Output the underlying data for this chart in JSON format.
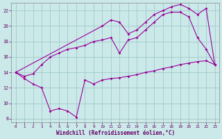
{
  "xlabel": "Windchill (Refroidissement éolien,°C)",
  "background_color": "#cbe9e9",
  "grid_color": "#a0c8c8",
  "line_color": "#990099",
  "xlim_min": -0.5,
  "xlim_max": 23.5,
  "ylim_min": 7.5,
  "ylim_max": 23.0,
  "yticks": [
    8,
    10,
    12,
    14,
    16,
    18,
    20,
    22
  ],
  "xticks": [
    0,
    1,
    2,
    3,
    4,
    5,
    6,
    7,
    8,
    9,
    10,
    11,
    12,
    13,
    14,
    15,
    16,
    17,
    18,
    19,
    20,
    21,
    22,
    23
  ],
  "series1_x": [
    0,
    1,
    2,
    3,
    4,
    5,
    6,
    7,
    8,
    9,
    10,
    11,
    12,
    13,
    14,
    15,
    16,
    17,
    18,
    19,
    20,
    21,
    22,
    23
  ],
  "series1_y": [
    14.0,
    13.2,
    12.5,
    12.0,
    9.0,
    9.3,
    9.0,
    8.2,
    13.0,
    12.5,
    13.0,
    13.2,
    13.3,
    13.5,
    13.7,
    14.0,
    14.2,
    14.5,
    14.7,
    15.0,
    15.2,
    15.4,
    15.5,
    15.0
  ],
  "series2_x": [
    0,
    1,
    2,
    3,
    4,
    5,
    6,
    7,
    8,
    9,
    10,
    11,
    12,
    13,
    14,
    15,
    16,
    17,
    18,
    19,
    20,
    21,
    22,
    23
  ],
  "series2_y": [
    14.0,
    13.5,
    13.8,
    15.0,
    16.0,
    16.5,
    17.0,
    17.2,
    17.5,
    18.0,
    18.2,
    18.5,
    16.5,
    18.2,
    18.5,
    19.5,
    20.5,
    21.5,
    21.8,
    21.8,
    21.2,
    18.5,
    17.0,
    15.0
  ],
  "series3_x": [
    0,
    10,
    11,
    12,
    13,
    14,
    15,
    16,
    17,
    18,
    19,
    20,
    21,
    22,
    23
  ],
  "series3_y": [
    14.0,
    20.0,
    20.8,
    20.5,
    19.0,
    19.5,
    20.5,
    21.5,
    22.0,
    22.5,
    22.8,
    22.3,
    21.5,
    22.3,
    15.0
  ]
}
